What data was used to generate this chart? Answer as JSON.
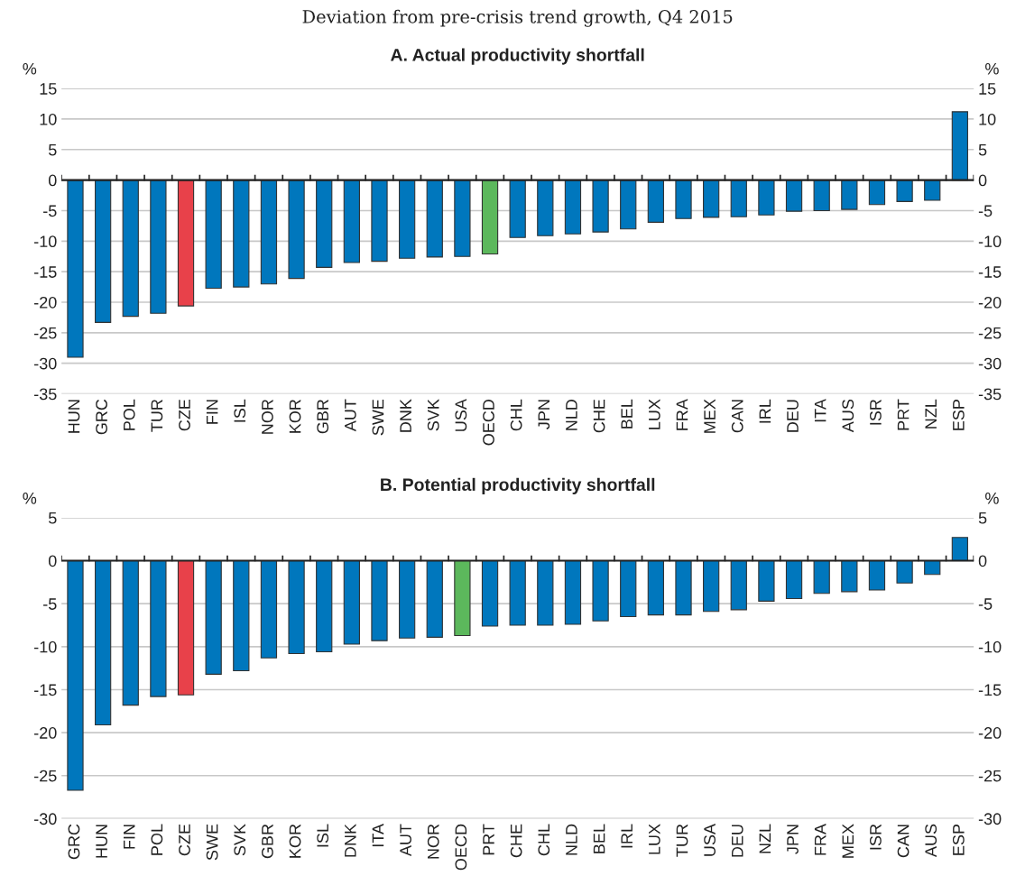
{
  "chart_data": [
    {
      "type": "bar",
      "subtitle": "Deviation from pre-crisis trend growth, Q4 2015",
      "title": "A. Actual productivity shortfall",
      "ylabel": "%",
      "y2label": "%",
      "categories": [
        "HUN",
        "GRC",
        "POL",
        "TUR",
        "CZE",
        "FIN",
        "ISL",
        "NOR",
        "KOR",
        "GBR",
        "AUT",
        "SWE",
        "DNK",
        "SVK",
        "USA",
        "OECD",
        "CHL",
        "JPN",
        "NLD",
        "CHE",
        "BEL",
        "LUX",
        "FRA",
        "MEX",
        "CAN",
        "IRL",
        "DEU",
        "ITA",
        "AUS",
        "ISR",
        "PRT",
        "NZL",
        "ESP"
      ],
      "values": [
        -29,
        -23.3,
        -22.3,
        -21.8,
        -20.6,
        -17.7,
        -17.5,
        -17.0,
        -16.1,
        -14.3,
        -13.5,
        -13.3,
        -12.8,
        -12.6,
        -12.5,
        -12.1,
        -9.4,
        -9.1,
        -8.8,
        -8.5,
        -8.0,
        -6.9,
        -6.3,
        -6.1,
        -6.0,
        -5.7,
        -5.1,
        -5.0,
        -4.8,
        -4.0,
        -3.5,
        -3.3,
        11.2
      ],
      "colors": [
        "#0077bd",
        "#0077bd",
        "#0077bd",
        "#0077bd",
        "#e8414a",
        "#0077bd",
        "#0077bd",
        "#0077bd",
        "#0077bd",
        "#0077bd",
        "#0077bd",
        "#0077bd",
        "#0077bd",
        "#0077bd",
        "#0077bd",
        "#5cb85c",
        "#0077bd",
        "#0077bd",
        "#0077bd",
        "#0077bd",
        "#0077bd",
        "#0077bd",
        "#0077bd",
        "#0077bd",
        "#0077bd",
        "#0077bd",
        "#0077bd",
        "#0077bd",
        "#0077bd",
        "#0077bd",
        "#0077bd",
        "#0077bd",
        "#0077bd"
      ],
      "ylim": [
        -35,
        15
      ],
      "yticks": [
        -35,
        -30,
        -25,
        -20,
        -15,
        -10,
        -5,
        0,
        5,
        10,
        15
      ],
      "y2lim": [
        -35,
        15
      ],
      "y2ticks": [
        -35,
        -30,
        -25,
        -20,
        -15,
        -10,
        -5,
        0,
        5,
        10,
        15
      ],
      "grid": "y"
    },
    {
      "type": "bar",
      "title": "B. Potential productivity shortfall",
      "ylabel": "%",
      "y2label": "%",
      "categories": [
        "GRC",
        "HUN",
        "FIN",
        "POL",
        "CZE",
        "SWE",
        "SVK",
        "GBR",
        "KOR",
        "ISL",
        "DNK",
        "ITA",
        "AUT",
        "NOR",
        "OECD",
        "PRT",
        "CHE",
        "CHL",
        "NLD",
        "BEL",
        "IRL",
        "LUX",
        "TUR",
        "USA",
        "DEU",
        "NZL",
        "JPN",
        "FRA",
        "MEX",
        "ISR",
        "CAN",
        "AUS",
        "ESP"
      ],
      "values": [
        -26.7,
        -19.1,
        -16.8,
        -15.8,
        -15.6,
        -13.2,
        -12.8,
        -11.3,
        -10.8,
        -10.6,
        -9.7,
        -9.3,
        -9.0,
        -8.9,
        -8.7,
        -7.6,
        -7.5,
        -7.5,
        -7.4,
        -7.0,
        -6.5,
        -6.3,
        -6.3,
        -5.9,
        -5.7,
        -4.7,
        -4.4,
        -3.8,
        -3.6,
        -3.4,
        -2.6,
        -1.6,
        2.7
      ],
      "colors": [
        "#0077bd",
        "#0077bd",
        "#0077bd",
        "#0077bd",
        "#e8414a",
        "#0077bd",
        "#0077bd",
        "#0077bd",
        "#0077bd",
        "#0077bd",
        "#0077bd",
        "#0077bd",
        "#0077bd",
        "#0077bd",
        "#5cb85c",
        "#0077bd",
        "#0077bd",
        "#0077bd",
        "#0077bd",
        "#0077bd",
        "#0077bd",
        "#0077bd",
        "#0077bd",
        "#0077bd",
        "#0077bd",
        "#0077bd",
        "#0077bd",
        "#0077bd",
        "#0077bd",
        "#0077bd",
        "#0077bd",
        "#0077bd",
        "#0077bd"
      ],
      "ylim": [
        -30,
        5
      ],
      "yticks": [
        -30,
        -25,
        -20,
        -15,
        -10,
        -5,
        0,
        5
      ],
      "y2lim": [
        -30,
        5
      ],
      "y2ticks": [
        -30,
        -25,
        -20,
        -15,
        -10,
        -5,
        0,
        5
      ],
      "grid": "y"
    }
  ]
}
